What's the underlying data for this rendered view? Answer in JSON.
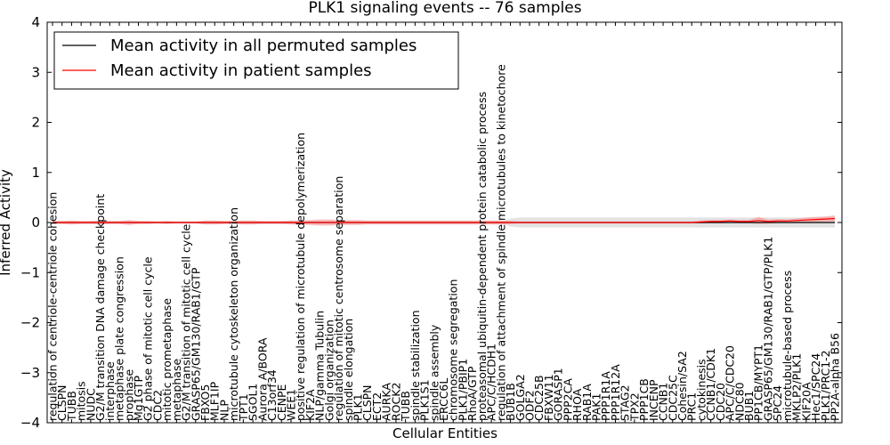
{
  "chart_data": {
    "type": "line",
    "title": "PLK1 signaling events -- 76 samples",
    "xlabel": "Cellular Entities",
    "ylabel": "Inferred Activity",
    "ylim": [
      -4,
      4
    ],
    "yticks": [
      -4,
      -3,
      -2,
      -1,
      0,
      1,
      2,
      3,
      4
    ],
    "ytick_labels": [
      "−4",
      "−3",
      "−2",
      "−1",
      "0",
      "1",
      "2",
      "3",
      "4"
    ],
    "grid": false,
    "legend_position": "top-left",
    "categories": [
      "regulation of centriole-centriole cohesion",
      "CLSPN",
      "TUBB",
      "mitosis",
      "NUDC",
      "G2/M transition DNA damage checkpoint",
      "interphase",
      "metaphase plate congression",
      "prophase",
      "Mg1GTP",
      "G2 phase of mitotic cell cycle",
      "CDC2",
      "mitotic prometaphase",
      "metaphase",
      "G2/M transition of mitotic cell cycle",
      "GRASP65/GM130/RAB1/GTP",
      "FBXO5",
      "MLF1IP",
      "NLP",
      "microtubule cytoskeleton organization",
      "TPT1",
      "SGOL1",
      "Aurora A/BORA",
      "C13orf34",
      "CENPE",
      "WEE1",
      "positive regulation of microtubule depolymerization",
      "KIF2A",
      "NLP/gamma Tubulin",
      "Golgi organization",
      "regulation of mitotic centrosome separation",
      "spindle elongation",
      "PLK1",
      "CLSPN",
      "ECT2",
      "AURKA",
      "ROCK2",
      "TUBB",
      "spindle stabilization",
      "PLK1S1",
      "spindle assembly",
      "ERCC6L",
      "chromosome segregation",
      "PLK1/PBIP1",
      "RhoA/GTP",
      "proteasomal ubiquitin-dependent protein catabolic process",
      "APC/C/HCDH1",
      "regulation of attachment of spindle microtubules to kinetochore",
      "BUB1B",
      "GOLGA2",
      "ODF2",
      "CDC25B",
      "FBXW11",
      "GORASP1",
      "PPP2CA",
      "RHOA",
      "RAB1A",
      "PAK1",
      "PPP1R1A",
      "PPP1R12A",
      "STAG2",
      "TPX2",
      "PPP1CB",
      "INCENP",
      "CCNB1",
      "CDC25C",
      "Cohesin/SA2",
      "PRC1",
      "cytokinesis",
      "CCNB1/CDK1",
      "CDC20",
      "APC/C/CDC20",
      "NDC80",
      "BUB1",
      "PP1CB/MYPT1",
      "GRASP65/GM130/RAB1/GTP/PLK1",
      "SPC24",
      "microtubule-based process",
      "MKLP2/PLK1",
      "KIF20A",
      "Hec1/SPC24",
      "PLK1/PRC1-2",
      "PP2A-alpha B56"
    ],
    "series": [
      {
        "name": "Mean activity in all permuted samples",
        "color": "#000000",
        "values": [
          0,
          0,
          0,
          0,
          0,
          0,
          0,
          0,
          0,
          0,
          0,
          0,
          0,
          0,
          0,
          0,
          0,
          0,
          0,
          0,
          0,
          0,
          0,
          0,
          0,
          0,
          0,
          0,
          0,
          0,
          0,
          0,
          0,
          0,
          0,
          0,
          0,
          0,
          0,
          0,
          0,
          0,
          0,
          0,
          0,
          0,
          0,
          0,
          0,
          0,
          0,
          0,
          0,
          0,
          0,
          0,
          0,
          0,
          0,
          0,
          0,
          0,
          0,
          0,
          0,
          0,
          0,
          0,
          0,
          0,
          0,
          0,
          0,
          0,
          0,
          0,
          0,
          0,
          0,
          0,
          0,
          0,
          0
        ],
        "band": [
          0,
          0,
          0,
          0,
          0,
          0,
          0,
          0,
          0,
          0,
          0,
          0,
          0,
          0,
          0,
          0,
          0,
          0,
          0,
          0,
          0,
          0,
          0,
          0,
          0,
          0,
          0,
          0,
          0,
          0,
          0,
          0,
          0,
          0,
          0,
          0,
          0,
          0,
          0,
          0,
          0,
          0,
          0,
          0,
          0,
          0,
          0,
          0.02,
          0.08,
          0.1,
          0.1,
          0.1,
          0.1,
          0.1,
          0.1,
          0.1,
          0.1,
          0.1,
          0.1,
          0.1,
          0.1,
          0.1,
          0.1,
          0.1,
          0.1,
          0.1,
          0.1,
          0.1,
          0.1,
          0.1,
          0.1,
          0.1,
          0.1,
          0.1,
          0.1,
          0.1,
          0.1,
          0.1,
          0.1,
          0.1,
          0.1,
          0.1,
          0.1
        ],
        "band_color": "#d0d0d0"
      },
      {
        "name": "Mean activity in patient samples",
        "color": "#ff0000",
        "values": [
          0,
          0,
          0,
          0,
          0,
          0,
          0,
          0,
          0,
          0,
          0,
          0,
          0,
          0,
          0,
          0,
          0,
          0,
          0,
          0,
          0,
          0,
          0,
          0,
          0,
          0,
          0,
          0,
          0,
          0,
          0,
          0,
          0,
          0,
          0,
          0,
          0,
          0,
          0,
          0,
          0,
          0,
          0,
          0,
          0,
          0,
          0,
          0,
          0,
          0,
          0,
          0,
          0,
          0,
          0,
          0,
          0,
          0,
          0,
          0,
          0,
          0,
          0,
          0,
          0,
          0,
          0,
          0,
          0.01,
          0.02,
          0.02,
          0.03,
          0.02,
          0.02,
          0.04,
          0.02,
          0.03,
          0.03,
          0.04,
          0.05,
          0.06,
          0.07,
          0.08
        ],
        "band": [
          0.03,
          0.03,
          0.04,
          0.03,
          0.03,
          0.04,
          0.03,
          0.03,
          0.05,
          0.03,
          0.03,
          0.02,
          0.03,
          0.02,
          0.02,
          0.02,
          0.04,
          0.04,
          0.03,
          0.03,
          0.04,
          0.04,
          0.03,
          0.03,
          0.03,
          0.04,
          0.04,
          0.05,
          0.06,
          0.06,
          0.05,
          0.05,
          0.05,
          0.04,
          0.04,
          0.04,
          0.04,
          0.04,
          0.04,
          0.04,
          0.04,
          0.04,
          0.04,
          0.04,
          0.04,
          0.04,
          0.04,
          0.04,
          0.03,
          0.02,
          0.02,
          0.02,
          0.02,
          0.02,
          0.02,
          0.02,
          0.02,
          0.02,
          0.02,
          0.02,
          0.02,
          0.02,
          0.02,
          0.02,
          0.02,
          0.02,
          0.02,
          0.02,
          0.03,
          0.03,
          0.03,
          0.03,
          0.03,
          0.03,
          0.07,
          0.04,
          0.04,
          0.03,
          0.04,
          0.05,
          0.05,
          0.05,
          0.06
        ],
        "band_color": "#f2a4a4"
      }
    ]
  }
}
